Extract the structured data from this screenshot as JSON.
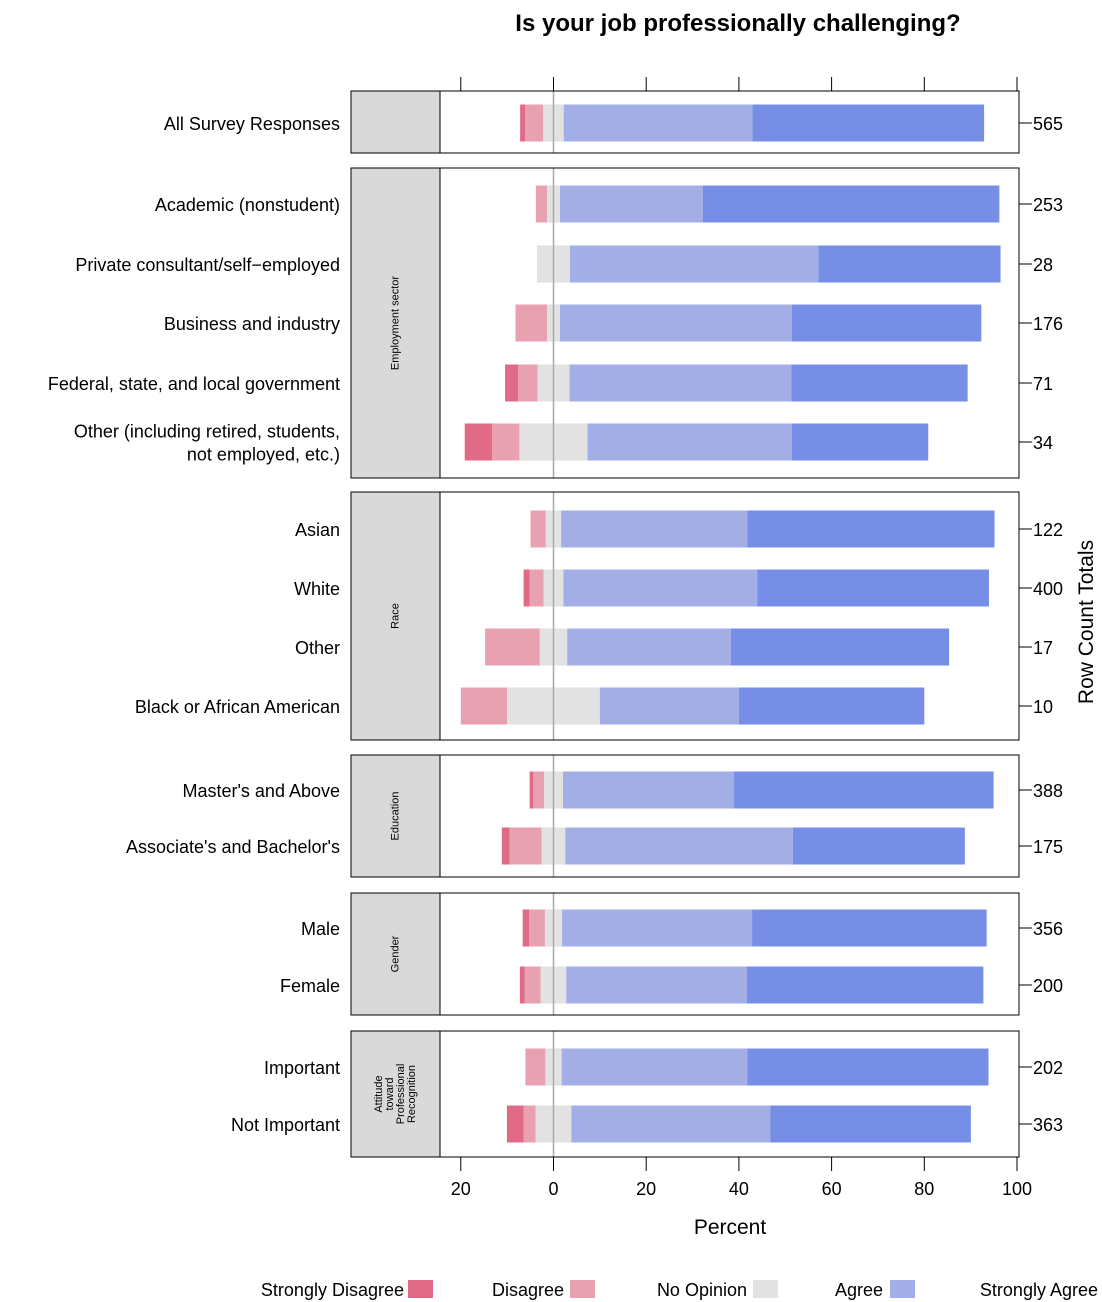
{
  "chart_data": {
    "type": "bar",
    "orientation": "horizontal",
    "subtype": "diverging stacked (Likert)",
    "title": "Is your job professionally challenging?",
    "xlabel": "Percent",
    "right_axis_label": "Row Count Totals",
    "x_tick_labels": [
      "20",
      "0",
      "20",
      "40",
      "60",
      "80",
      "100"
    ],
    "x_ticks": [
      -20,
      0,
      20,
      40,
      60,
      80,
      100
    ],
    "xlim": [
      -43.6,
      100.6
    ],
    "grid": false,
    "legend_position": "bottom",
    "levels": [
      "Strongly Disagree",
      "Disagree",
      "No Opinion",
      "Agree",
      "Strongly Agree"
    ],
    "colors": {
      "Strongly Disagree": "#e16a86",
      "Disagree": "#e8a1b0",
      "No Opinion": "#e2e2e2",
      "Agree": "#a3aee6",
      "Strongly Agree": "#778ee6"
    },
    "groups": [
      {
        "strip_label": [],
        "rows": [
          {
            "label": [
              "All Survey Responses"
            ],
            "total": "565",
            "values": {
              "Strongly Disagree": 1.1,
              "Disagree": 3.9,
              "No Opinion": 4.4,
              "Agree": 40.7,
              "Strongly Agree": 50.0
            }
          }
        ]
      },
      {
        "strip_label": [
          "Employment sector"
        ],
        "rows": [
          {
            "label": [
              "Academic (nonstudent)"
            ],
            "total": "253",
            "values": {
              "Strongly Disagree": 0.0,
              "Disagree": 2.4,
              "No Opinion": 2.8,
              "Agree": 30.8,
              "Strongly Agree": 64.0
            }
          },
          {
            "label": [
              "Private consultant/self−employed"
            ],
            "total": "28",
            "values": {
              "Strongly Disagree": 0.0,
              "Disagree": 0.0,
              "No Opinion": 7.1,
              "Agree": 53.6,
              "Strongly Agree": 39.3
            }
          },
          {
            "label": [
              "Business and industry"
            ],
            "total": "176",
            "values": {
              "Strongly Disagree": 0.0,
              "Disagree": 6.8,
              "No Opinion": 2.8,
              "Agree": 50.0,
              "Strongly Agree": 40.9
            }
          },
          {
            "label": [
              "Federal, state, and local government"
            ],
            "total": "71",
            "values": {
              "Strongly Disagree": 2.8,
              "Disagree": 4.2,
              "No Opinion": 6.9,
              "Agree": 47.9,
              "Strongly Agree": 38.0
            }
          },
          {
            "label": [
              "Other (including retired, students,",
              "not employed, etc.)"
            ],
            "total": "34",
            "values": {
              "Strongly Disagree": 5.9,
              "Disagree": 5.9,
              "No Opinion": 14.7,
              "Agree": 44.1,
              "Strongly Agree": 29.4
            }
          }
        ]
      },
      {
        "strip_label": [
          "Race"
        ],
        "rows": [
          {
            "label": [
              "Asian"
            ],
            "total": "122",
            "values": {
              "Strongly Disagree": 0.0,
              "Disagree": 3.3,
              "No Opinion": 3.3,
              "Agree": 40.2,
              "Strongly Agree": 53.3
            }
          },
          {
            "label": [
              "White"
            ],
            "total": "400",
            "values": {
              "Strongly Disagree": 1.3,
              "Disagree": 3.0,
              "No Opinion": 4.3,
              "Agree": 41.8,
              "Strongly Agree": 50.0
            }
          },
          {
            "label": [
              "Other"
            ],
            "total": "17",
            "values": {
              "Strongly Disagree": 0.0,
              "Disagree": 11.8,
              "No Opinion": 5.9,
              "Agree": 35.3,
              "Strongly Agree": 47.1
            }
          },
          {
            "label": [
              "Black or African American"
            ],
            "total": "10",
            "values": {
              "Strongly Disagree": 0.0,
              "Disagree": 10.0,
              "No Opinion": 20.0,
              "Agree": 30.0,
              "Strongly Agree": 40.0
            }
          }
        ]
      },
      {
        "strip_label": [
          "Education"
        ],
        "rows": [
          {
            "label": [
              "Master's and Above"
            ],
            "total": "388",
            "values": {
              "Strongly Disagree": 0.8,
              "Disagree": 2.3,
              "No Opinion": 4.1,
              "Agree": 36.9,
              "Strongly Agree": 56.0
            }
          },
          {
            "label": [
              "Associate's and Bachelor's"
            ],
            "total": "175",
            "values": {
              "Strongly Disagree": 1.7,
              "Disagree": 6.9,
              "No Opinion": 5.1,
              "Agree": 49.1,
              "Strongly Agree": 37.1
            }
          }
        ]
      },
      {
        "strip_label": [
          "Gender"
        ],
        "rows": [
          {
            "label": [
              "Male"
            ],
            "total": "356",
            "values": {
              "Strongly Disagree": 1.4,
              "Disagree": 3.4,
              "No Opinion": 3.7,
              "Agree": 41.0,
              "Strongly Agree": 50.6
            }
          },
          {
            "label": [
              "Female"
            ],
            "total": "200",
            "values": {
              "Strongly Disagree": 1.0,
              "Disagree": 3.5,
              "No Opinion": 5.5,
              "Agree": 39.0,
              "Strongly Agree": 51.0
            }
          }
        ]
      },
      {
        "strip_label": [
          "Attitude",
          "toward",
          "Professional",
          "Recognition"
        ],
        "rows": [
          {
            "label": [
              "Important"
            ],
            "total": "202",
            "values": {
              "Strongly Disagree": 0.0,
              "Disagree": 4.3,
              "No Opinion": 3.5,
              "Agree": 40.1,
              "Strongly Agree": 52.0
            }
          },
          {
            "label": [
              "Not Important"
            ],
            "total": "363",
            "values": {
              "Strongly Disagree": 3.6,
              "Disagree": 2.6,
              "No Opinion": 7.7,
              "Agree": 42.9,
              "Strongly Agree": 43.3
            }
          }
        ]
      }
    ]
  }
}
